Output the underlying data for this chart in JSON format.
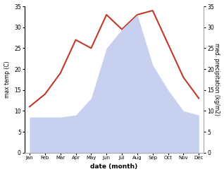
{
  "months": [
    "Jan",
    "Feb",
    "Mar",
    "Apr",
    "May",
    "Jun",
    "Jul",
    "Aug",
    "Sep",
    "Oct",
    "Nov",
    "Dec"
  ],
  "temp": [
    11,
    14,
    19,
    27,
    25,
    33,
    29.5,
    33,
    34,
    26,
    18,
    13
  ],
  "precip": [
    8.5,
    8.5,
    8.5,
    9,
    13,
    25,
    29.5,
    33,
    21,
    15,
    10,
    9
  ],
  "temp_color": "#c0392b",
  "precip_fill_color": "#c8d0f0",
  "ylim_left": [
    0,
    35
  ],
  "ylim_right": [
    0,
    35
  ],
  "yticks": [
    0,
    5,
    10,
    15,
    20,
    25,
    30,
    35
  ],
  "xlabel": "date (month)",
  "ylabel_left": "max temp (C)",
  "ylabel_right": "med. precipitation (kg/m2)",
  "bg_color": "#ffffff"
}
